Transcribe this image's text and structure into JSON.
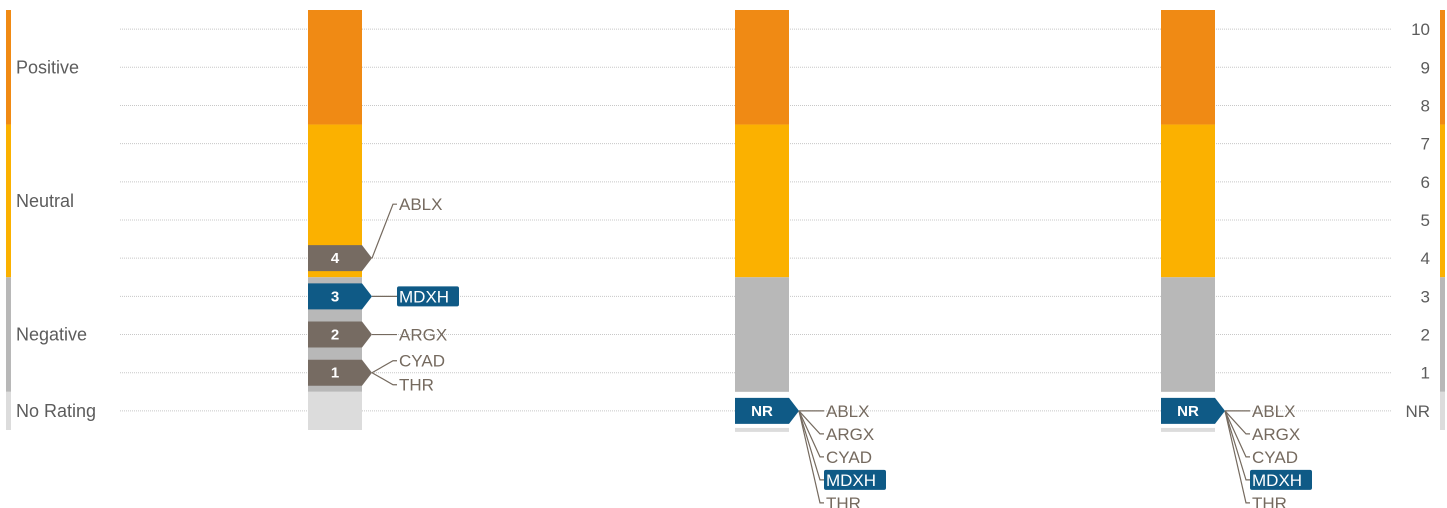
{
  "chart_data": {
    "type": "bar",
    "title": "",
    "colors": {
      "positive": "#f08a14",
      "neutral": "#fbb100",
      "negative": "#b8b8b8",
      "no_rating": "#dcdcdc",
      "marker_default": "#766b62",
      "marker_highlight": "#0f5a86",
      "ticker_text": "#756a5f",
      "gridline": "#c8c8c8"
    },
    "rating_bands": [
      {
        "name": "Positive",
        "from": 7.5,
        "to": 10.5
      },
      {
        "name": "Neutral",
        "from": 3.5,
        "to": 7.5
      },
      {
        "name": "Negative",
        "from": 0.5,
        "to": 3.5
      },
      {
        "name": "No Rating",
        "from": -0.5,
        "to": 0.5
      }
    ],
    "y_ticks": [
      "NR",
      "1",
      "2",
      "3",
      "4",
      "5",
      "6",
      "7",
      "8",
      "9",
      "10"
    ],
    "ylim": [
      -0.5,
      10.5
    ],
    "grid": true,
    "highlight": "MDXH",
    "columns": [
      {
        "markers": [
          {
            "label": "4",
            "value": 4,
            "tickers": [
              "ABLX"
            ]
          },
          {
            "label": "3",
            "value": 3,
            "tickers": [
              "MDXH"
            ],
            "highlight": true
          },
          {
            "label": "2",
            "value": 2,
            "tickers": [
              "ARGX"
            ]
          },
          {
            "label": "1",
            "value": 1,
            "tickers": [
              "CYAD",
              "THR"
            ]
          }
        ]
      },
      {
        "markers": [
          {
            "label": "NR",
            "value": 0,
            "tickers": [
              "ABLX",
              "ARGX",
              "CYAD",
              "MDXH",
              "THR"
            ],
            "highlight": true
          }
        ]
      },
      {
        "markers": [
          {
            "label": "NR",
            "value": 0,
            "tickers": [
              "ABLX",
              "ARGX",
              "CYAD",
              "MDXH",
              "THR"
            ],
            "highlight": true
          }
        ]
      }
    ]
  }
}
